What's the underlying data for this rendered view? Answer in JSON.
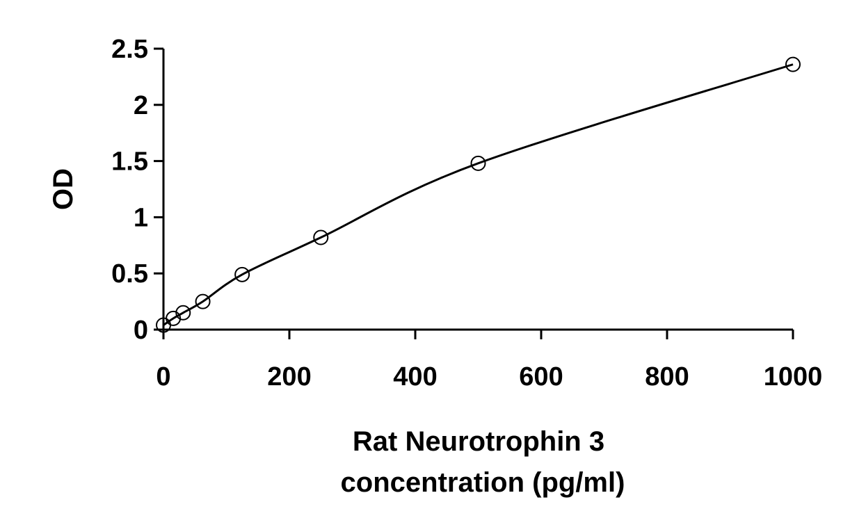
{
  "chart_data": {
    "type": "scatter",
    "title": "",
    "xlabel_lines": [
      "Rat Neurotrophin 3",
      "concentration (pg/ml)"
    ],
    "ylabel": "OD",
    "xlim": [
      0,
      1000
    ],
    "ylim": [
      0,
      2.5
    ],
    "x_ticks": [
      0,
      200,
      400,
      600,
      800,
      1000
    ],
    "y_ticks": [
      0,
      0.5,
      1,
      1.5,
      2,
      2.5
    ],
    "x_tick_labels": [
      "0",
      "200",
      "400",
      "600",
      "800",
      "1000"
    ],
    "y_tick_labels": [
      "0",
      "0.5",
      "1",
      "1.5",
      "2",
      "2.5"
    ],
    "grid": false,
    "legend": "none",
    "series": [
      {
        "x": [
          0,
          15.6,
          31.25,
          62.5,
          125,
          250,
          500,
          1000
        ],
        "y": [
          0.04,
          0.1,
          0.15,
          0.25,
          0.49,
          0.82,
          1.48,
          2.36
        ],
        "marker": "open-circle",
        "fit_line": true
      }
    ],
    "colors": {
      "line": "#000000",
      "marker": "#000000",
      "background": "#ffffff"
    }
  }
}
